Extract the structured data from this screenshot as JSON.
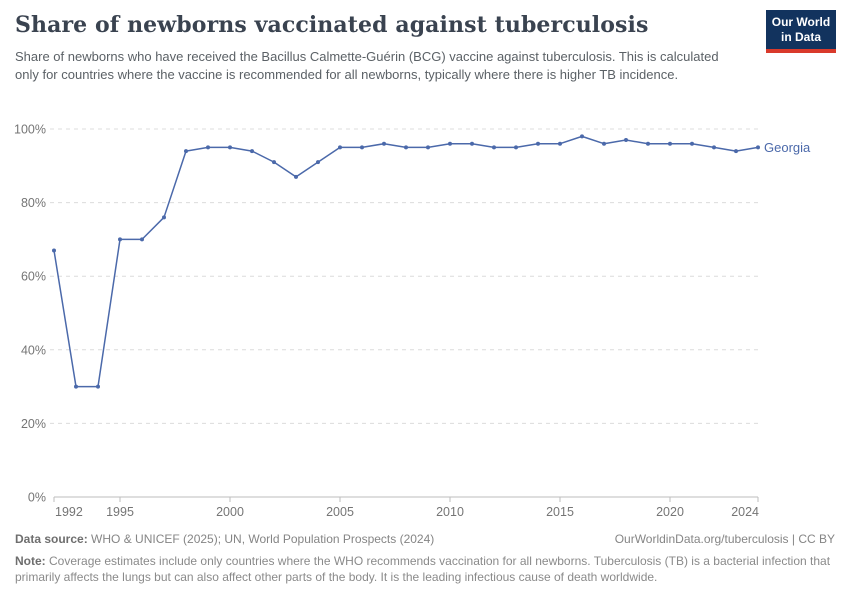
{
  "header": {
    "title": "Share of newborns vaccinated against tuberculosis",
    "subtitle": "Share of newborns who have received the Bacillus Calmette-Guérin (BCG) vaccine against tuberculosis. This is calculated only for countries where the vaccine is recommended for all newborns, typically where there is higher TB incidence.",
    "logo_line1": "Our World",
    "logo_line2": "in Data"
  },
  "chart_data": {
    "type": "line",
    "title": "Share of newborns vaccinated against tuberculosis",
    "xlabel": "",
    "ylabel": "",
    "xlim": [
      1992,
      2024
    ],
    "ylim": [
      0,
      100
    ],
    "x_ticks": [
      1992,
      1995,
      2000,
      2005,
      2010,
      2015,
      2020,
      2024
    ],
    "y_ticks": [
      0,
      20,
      40,
      60,
      80,
      100
    ],
    "y_tick_suffix": "%",
    "grid": "horizontal-dashed",
    "legend_position": "end-of-line-label",
    "end_label": "Georgia",
    "series": [
      {
        "name": "Georgia",
        "color": "#4b69aa",
        "x": [
          1992,
          1993,
          1994,
          1995,
          1996,
          1997,
          1998,
          1999,
          2000,
          2001,
          2002,
          2003,
          2004,
          2005,
          2006,
          2007,
          2008,
          2009,
          2010,
          2011,
          2012,
          2013,
          2014,
          2015,
          2016,
          2017,
          2018,
          2019,
          2020,
          2021,
          2022,
          2023,
          2024
        ],
        "values": [
          67,
          30,
          30,
          70,
          70,
          76,
          94,
          95,
          95,
          94,
          91,
          87,
          91,
          95,
          95,
          96,
          95,
          95,
          96,
          96,
          95,
          95,
          96,
          96,
          98,
          96,
          97,
          96,
          96,
          96,
          95,
          94,
          95
        ]
      }
    ]
  },
  "footer": {
    "data_source_label": "Data source:",
    "data_source_text": " WHO & UNICEF (2025); UN, World Population Prospects (2024)",
    "attribution": "OurWorldinData.org/tuberculosis | CC BY",
    "note_label": "Note:",
    "note_text": " Coverage estimates include only countries where the WHO recommends vaccination for all newborns. Tuberculosis (TB) is a bacterial infection that primarily affects the lungs but can also affect other parts of the body. It is the leading infectious cause of death worldwide."
  },
  "colors": {
    "line": "#4b69aa",
    "logo_background": "#12335e",
    "logo_bar": "#d93a2b",
    "grid": "#dcdcdc",
    "axis": "#bdbdbd",
    "tick_label": "#757575"
  }
}
